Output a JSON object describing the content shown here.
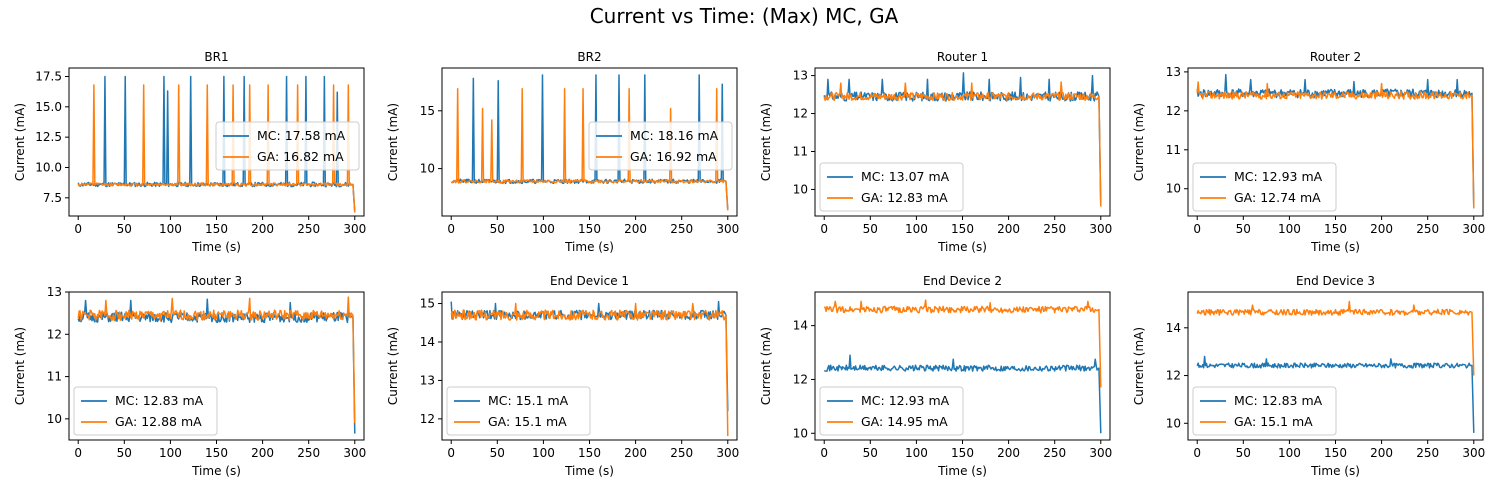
{
  "title": "Current vs Time: (Max) MC, GA",
  "colors": {
    "MC": "#1f77b4",
    "GA": "#ff7f0e",
    "frame": "#000000"
  },
  "chart_data": [
    {
      "type": "line",
      "title": "BR1",
      "xlabel": "Time (s)",
      "ylabel": "Current (mA)",
      "xlim": [
        -10,
        310
      ],
      "ylim": [
        6.0,
        18.2
      ],
      "xticks": [
        0,
        50,
        100,
        150,
        200,
        250,
        300
      ],
      "yticks": [
        7.5,
        10.0,
        12.5,
        15.0,
        17.5
      ],
      "ytick_labels": [
        "7.5",
        "10.0",
        "12.5",
        "15.0",
        "17.5"
      ],
      "legend_position": "center-right",
      "series": [
        {
          "name": "MC: 17.58 mA",
          "baseline": 8.6,
          "noise": 0.18,
          "end_value": 6.3,
          "seed": 11,
          "spikes": [
            [
              29,
              17.5
            ],
            [
              51,
              17.5
            ],
            [
              93,
              17.5
            ],
            [
              97,
              16.3
            ],
            [
              122,
              17.5
            ],
            [
              158,
              17.5
            ],
            [
              180,
              17.5
            ],
            [
              226,
              17.5
            ],
            [
              247,
              17.5
            ],
            [
              267,
              17.5
            ],
            [
              281,
              16.2
            ]
          ]
        },
        {
          "name": "GA: 16.82 mA",
          "baseline": 8.6,
          "noise": 0.12,
          "end_value": 6.3,
          "seed": 12,
          "spikes": [
            [
              17,
              16.8
            ],
            [
              71,
              16.8
            ],
            [
              109,
              16.8
            ],
            [
              140,
              16.8
            ],
            [
              168,
              16.8
            ],
            [
              186,
              16.8
            ],
            [
              206,
              16.8
            ],
            [
              238,
              16.8
            ],
            [
              277,
              16.8
            ],
            [
              293,
              16.8
            ]
          ]
        }
      ]
    },
    {
      "type": "line",
      "title": "BR2",
      "xlabel": "Time (s)",
      "ylabel": "Current (mA)",
      "xlim": [
        -10,
        310
      ],
      "ylim": [
        5.9,
        18.7
      ],
      "xticks": [
        0,
        50,
        100,
        150,
        200,
        250,
        300
      ],
      "yticks": [
        10,
        15
      ],
      "ytick_labels": [
        "10",
        "15"
      ],
      "legend_position": "center-right",
      "series": [
        {
          "name": "MC: 18.16 mA",
          "baseline": 8.9,
          "noise": 0.18,
          "end_value": 6.4,
          "seed": 21,
          "spikes": [
            [
              24,
              17.8
            ],
            [
              51,
              17.6
            ],
            [
              99,
              18.1
            ],
            [
              157,
              18.1
            ],
            [
              182,
              18.1
            ],
            [
              210,
              18.1
            ],
            [
              269,
              18.1
            ],
            [
              294,
              17.3
            ]
          ]
        },
        {
          "name": "GA: 16.92 mA",
          "baseline": 8.9,
          "noise": 0.12,
          "end_value": 6.4,
          "seed": 22,
          "spikes": [
            [
              7,
              16.9
            ],
            [
              34,
              15.2
            ],
            [
              44,
              14.2
            ],
            [
              77,
              16.9
            ],
            [
              123,
              16.9
            ],
            [
              143,
              16.9
            ],
            [
              193,
              16.9
            ],
            [
              238,
              15.2
            ],
            [
              288,
              16.9
            ]
          ]
        }
      ]
    },
    {
      "type": "line",
      "title": "Router 1",
      "xlabel": "Time (s)",
      "ylabel": "Current (mA)",
      "xlim": [
        -10,
        310
      ],
      "ylim": [
        9.3,
        13.2
      ],
      "xticks": [
        0,
        50,
        100,
        150,
        200,
        250,
        300
      ],
      "yticks": [
        10,
        11,
        12,
        13
      ],
      "ytick_labels": [
        "10",
        "11",
        "12",
        "13"
      ],
      "legend_position": "lower-left",
      "series": [
        {
          "name": "MC: 13.07 mA",
          "baseline": 12.45,
          "noise": 0.12,
          "end_value": 9.55,
          "seed": 31,
          "spikes": [
            [
              4,
              12.9
            ],
            [
              27,
              12.9
            ],
            [
              63,
              12.9
            ],
            [
              112,
              12.9
            ],
            [
              151,
              13.07
            ],
            [
              179,
              12.9
            ],
            [
              213,
              12.95
            ],
            [
              244,
              12.9
            ],
            [
              291,
              13.0
            ]
          ]
        },
        {
          "name": "GA: 12.83 mA",
          "baseline": 12.45,
          "noise": 0.1,
          "end_value": 9.55,
          "seed": 32,
          "spikes": [
            [
              18,
              12.8
            ],
            [
              88,
              12.8
            ],
            [
              160,
              12.8
            ],
            [
              257,
              12.83
            ]
          ]
        }
      ]
    },
    {
      "type": "line",
      "title": "Router 2",
      "xlabel": "Time (s)",
      "ylabel": "Current (mA)",
      "xlim": [
        -10,
        310
      ],
      "ylim": [
        9.3,
        13.1
      ],
      "xticks": [
        0,
        50,
        100,
        150,
        200,
        250,
        300
      ],
      "yticks": [
        10,
        11,
        12,
        13
      ],
      "ytick_labels": [
        "10",
        "11",
        "12",
        "13"
      ],
      "legend_position": "lower-left",
      "series": [
        {
          "name": "MC: 12.93 mA",
          "baseline": 12.45,
          "noise": 0.11,
          "end_value": 9.5,
          "seed": 41,
          "spikes": [
            [
              31,
              12.93
            ],
            [
              58,
              12.8
            ],
            [
              117,
              12.8
            ],
            [
              170,
              12.75
            ],
            [
              250,
              12.8
            ],
            [
              282,
              12.8
            ]
          ]
        },
        {
          "name": "GA: 12.74 mA",
          "baseline": 12.4,
          "noise": 0.1,
          "end_value": 9.5,
          "seed": 42,
          "spikes": [
            [
              1,
              12.74
            ],
            [
              76,
              12.7
            ],
            [
              200,
              12.7
            ]
          ]
        }
      ]
    },
    {
      "type": "line",
      "title": "Router 3",
      "xlabel": "Time (s)",
      "ylabel": "Current (mA)",
      "xlim": [
        -10,
        310
      ],
      "ylim": [
        9.5,
        13.0
      ],
      "xticks": [
        0,
        50,
        100,
        150,
        200,
        250,
        300
      ],
      "yticks": [
        10,
        11,
        12,
        13
      ],
      "ytick_labels": [
        "10",
        "11",
        "12",
        "13"
      ],
      "legend_position": "lower-left",
      "series": [
        {
          "name": "MC: 12.83 mA",
          "baseline": 12.4,
          "noise": 0.12,
          "end_value": 9.65,
          "seed": 51,
          "spikes": [
            [
              8,
              12.8
            ],
            [
              57,
              12.8
            ],
            [
              140,
              12.83
            ],
            [
              230,
              12.75
            ]
          ]
        },
        {
          "name": "GA: 12.88 mA",
          "baseline": 12.45,
          "noise": 0.12,
          "end_value": 9.9,
          "seed": 52,
          "spikes": [
            [
              30,
              12.8
            ],
            [
              102,
              12.85
            ],
            [
              186,
              12.85
            ],
            [
              293,
              12.88
            ]
          ]
        }
      ]
    },
    {
      "type": "line",
      "title": "End Device 1",
      "xlabel": "Time (s)",
      "ylabel": "Current (mA)",
      "xlim": [
        -10,
        310
      ],
      "ylim": [
        11.45,
        15.3
      ],
      "xticks": [
        0,
        50,
        100,
        150,
        200,
        250,
        300
      ],
      "yticks": [
        12,
        13,
        14,
        15
      ],
      "ytick_labels": [
        "12",
        "13",
        "14",
        "15"
      ],
      "legend_position": "lower-left",
      "series": [
        {
          "name": "MC: 15.1 mA",
          "baseline": 14.7,
          "noise": 0.12,
          "end_value": 12.2,
          "seed": 61,
          "spikes": [
            [
              0,
              15.05
            ],
            [
              48,
              15.0
            ],
            [
              160,
              15.0
            ],
            [
              290,
              15.05
            ]
          ]
        },
        {
          "name": "GA: 15.1 mA",
          "baseline": 14.7,
          "noise": 0.13,
          "end_value": 11.55,
          "seed": 62,
          "spikes": [
            [
              70,
              15.0
            ],
            [
              200,
              15.0
            ],
            [
              262,
              15.0
            ]
          ]
        }
      ]
    },
    {
      "type": "line",
      "title": "End Device 2",
      "xlabel": "Time (s)",
      "ylabel": "Current (mA)",
      "xlim": [
        -10,
        310
      ],
      "ylim": [
        9.75,
        15.25
      ],
      "xticks": [
        0,
        50,
        100,
        150,
        200,
        250,
        300
      ],
      "yticks": [
        10,
        12,
        14
      ],
      "ytick_labels": [
        "10",
        "12",
        "14"
      ],
      "legend_position": "lower-left",
      "series": [
        {
          "name": "MC: 12.93 mA",
          "baseline": 12.42,
          "noise": 0.11,
          "end_value": 10.0,
          "seed": 71,
          "spikes": [
            [
              28,
              12.9
            ],
            [
              140,
              12.75
            ],
            [
              294,
              12.75
            ]
          ]
        },
        {
          "name": "GA: 14.95 mA",
          "baseline": 14.6,
          "noise": 0.12,
          "end_value": 11.7,
          "seed": 72,
          "spikes": [
            [
              12,
              14.9
            ],
            [
              40,
              14.9
            ],
            [
              110,
              14.95
            ],
            [
              180,
              14.85
            ],
            [
              286,
              14.9
            ]
          ]
        }
      ]
    },
    {
      "type": "line",
      "title": "End Device 3",
      "xlabel": "Time (s)",
      "ylabel": "Current (mA)",
      "xlim": [
        -10,
        310
      ],
      "ylim": [
        9.3,
        15.5
      ],
      "xticks": [
        0,
        50,
        100,
        150,
        200,
        250,
        300
      ],
      "yticks": [
        10,
        12,
        14
      ],
      "ytick_labels": [
        "10",
        "12",
        "14"
      ],
      "legend_position": "lower-left",
      "series": [
        {
          "name": "MC: 12.83 mA",
          "baseline": 12.42,
          "noise": 0.1,
          "end_value": 9.6,
          "seed": 81,
          "spikes": [
            [
              8,
              12.8
            ],
            [
              75,
              12.7
            ],
            [
              210,
              12.7
            ]
          ]
        },
        {
          "name": "GA: 15.1 mA",
          "baseline": 14.65,
          "noise": 0.12,
          "end_value": 12.0,
          "seed": 82,
          "spikes": [
            [
              165,
              15.1
            ],
            [
              60,
              14.95
            ],
            [
              235,
              14.95
            ]
          ]
        }
      ]
    }
  ]
}
